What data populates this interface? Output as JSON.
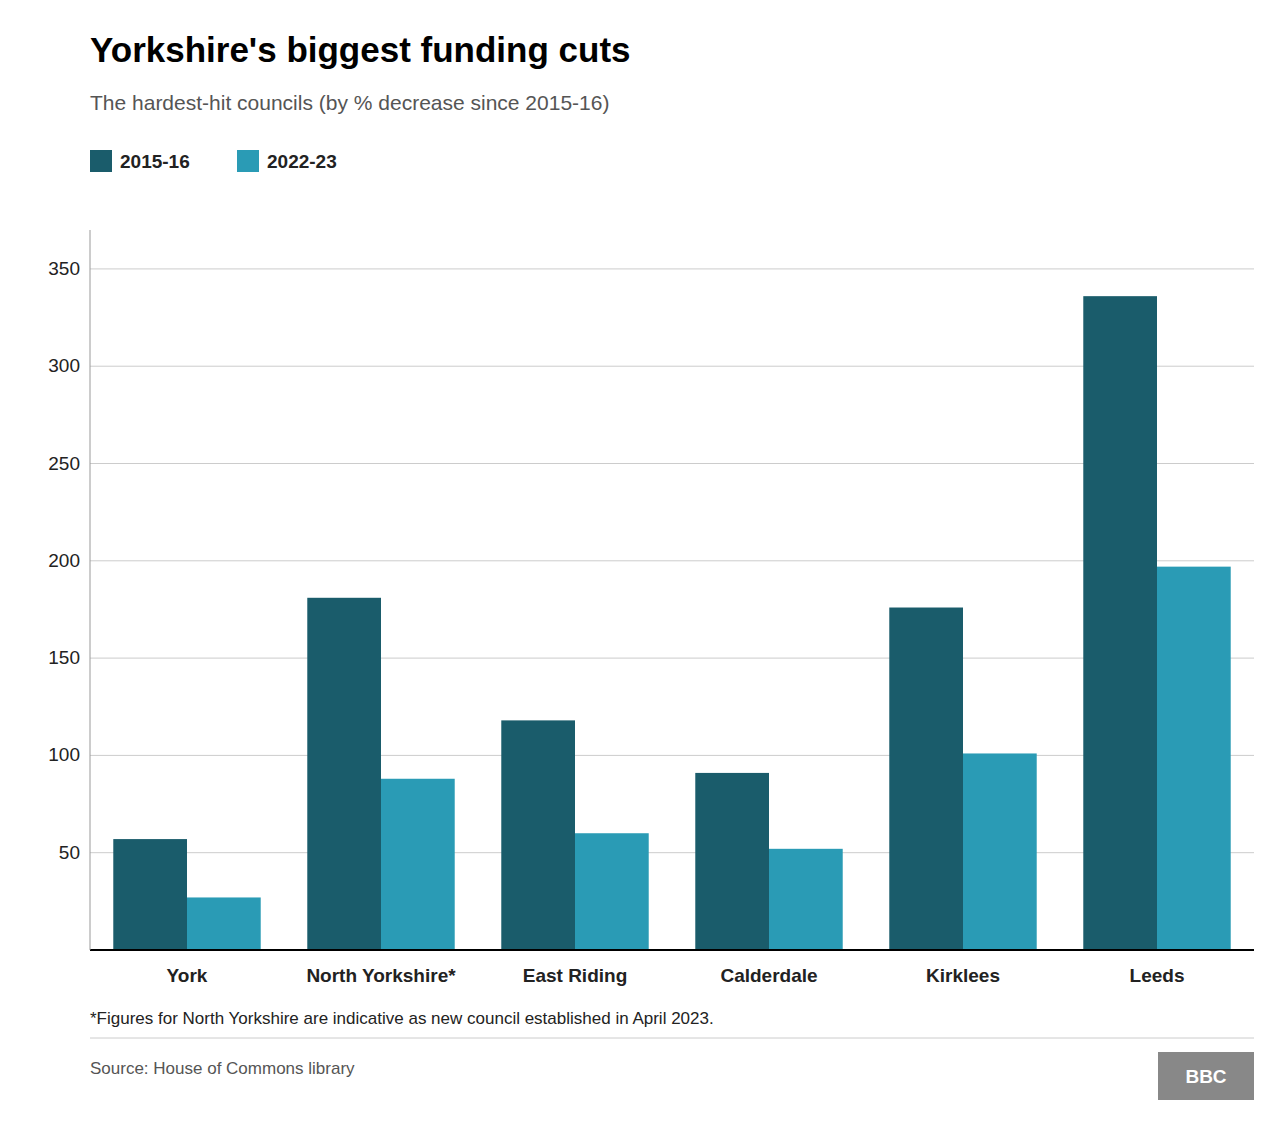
{
  "chart_data": {
    "type": "bar",
    "title": "Yorkshire's biggest funding cuts",
    "subtitle": "The hardest-hit councils (by % decrease since 2015-16)",
    "annotations": [
      "*Figures for North Yorkshire are indicative as new council established in April 2023.",
      "Source: House of Commons library",
      "BBC"
    ],
    "categories": [
      "York",
      "North Yorkshire*",
      "East Riding",
      "Calderdale",
      "Kirklees",
      "Leeds"
    ],
    "series": [
      {
        "name": "2015-16",
        "color": "#1a5c6b",
        "values": [
          57,
          181,
          118,
          91,
          176,
          336
        ]
      },
      {
        "name": "2022-23",
        "color": "#2a9bb5",
        "values": [
          27,
          88,
          60,
          52,
          101,
          197
        ]
      }
    ],
    "ylim": [
      0,
      370
    ],
    "yticks": [
      50,
      100,
      150,
      200,
      250,
      300,
      350
    ],
    "grid": true,
    "legend": "upper left"
  }
}
